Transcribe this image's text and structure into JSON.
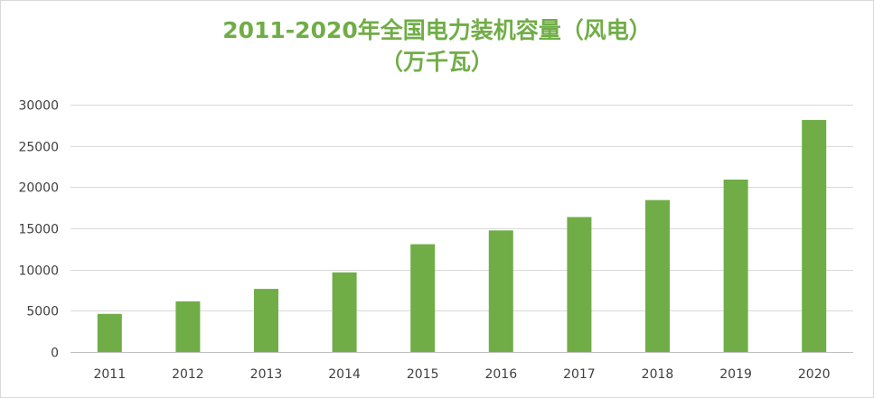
{
  "title_line1": "2011-2020年全国电力装机容量（风电）",
  "title_line2": "（万千瓦）",
  "colors": {
    "bar": "#70ad47",
    "title": "#70ad47",
    "grid": "#d9d9d9",
    "axis": "#bfbfbf",
    "tick_text": "#404040"
  },
  "chart_data": {
    "type": "bar",
    "title": "2011-2020年全国电力装机容量（风电）（万千瓦）",
    "xlabel": "",
    "ylabel": "",
    "categories": [
      "2011",
      "2012",
      "2013",
      "2014",
      "2015",
      "2016",
      "2017",
      "2018",
      "2019",
      "2020"
    ],
    "values": [
      4623,
      6142,
      7652,
      9657,
      13075,
      14747,
      16367,
      18426,
      20915,
      28153
    ],
    "ylim": [
      0,
      30000
    ],
    "yticks": [
      "0",
      "5000",
      "10000",
      "15000",
      "20000",
      "25000",
      "30000"
    ],
    "grid": true,
    "legend": "none"
  }
}
